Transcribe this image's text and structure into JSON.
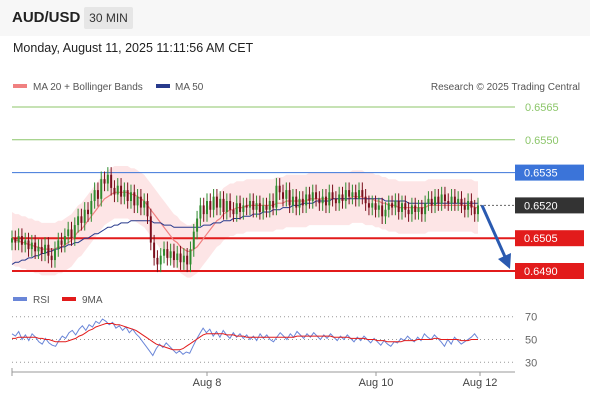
{
  "header": {
    "symbol": "AUD/USD",
    "interval": "30 MIN",
    "datetime": "Monday, August 11, 2025 11:11:56 AM CET"
  },
  "legend": {
    "ma20": "MA 20 + Bollinger Bands",
    "ma50": "MA 50",
    "credit": "Research © 2025 Trading Central",
    "rsi": "RSI",
    "rsi_ma": "9MA"
  },
  "colors": {
    "bull": "#2e8b2e",
    "bear": "#7a0e1c",
    "ma20": "#f08080",
    "ma50": "#283a8c",
    "bands": "#fde0e2",
    "support": "#e21b1b",
    "pivot": "#3b74d9",
    "target": "#8cc66a",
    "arrow": "#2a5ab0",
    "current": "#333333"
  },
  "chart_data": [
    {
      "type": "candlestick",
      "ylim": [
        0.6475,
        0.6575
      ],
      "x_labels": [
        "Aug 8",
        "Aug 10",
        "Aug 12"
      ],
      "levels": [
        {
          "value": 0.6565,
          "label": "0.6565",
          "kind": "target"
        },
        {
          "value": 0.655,
          "label": "0.6550",
          "kind": "target"
        },
        {
          "value": 0.6535,
          "label": "0.6535",
          "kind": "pivot"
        },
        {
          "value": 0.652,
          "label": "0.6520",
          "kind": "current"
        },
        {
          "value": 0.6505,
          "label": "0.6505",
          "kind": "support"
        },
        {
          "value": 0.649,
          "label": "0.6490",
          "kind": "support"
        }
      ],
      "closes": [
        0.6505,
        0.6503,
        0.6506,
        0.6502,
        0.6504,
        0.65,
        0.6503,
        0.6499,
        0.6501,
        0.6498,
        0.6502,
        0.6497,
        0.6495,
        0.65,
        0.6504,
        0.6502,
        0.6506,
        0.6509,
        0.6505,
        0.6511,
        0.6515,
        0.6512,
        0.6518,
        0.6516,
        0.6522,
        0.6527,
        0.6523,
        0.6532,
        0.653,
        0.6534,
        0.6528,
        0.6525,
        0.6529,
        0.6524,
        0.6527,
        0.6522,
        0.6526,
        0.652,
        0.6524,
        0.6519,
        0.6522,
        0.6515,
        0.6503,
        0.6496,
        0.6493,
        0.6497,
        0.65,
        0.6496,
        0.6499,
        0.6495,
        0.6498,
        0.6494,
        0.6497,
        0.6493,
        0.65,
        0.6508,
        0.6514,
        0.652,
        0.6516,
        0.6522,
        0.6518,
        0.6524,
        0.6519,
        0.6523,
        0.6517,
        0.6522,
        0.6518,
        0.6516,
        0.6521,
        0.6517,
        0.652,
        0.6519,
        0.6522,
        0.6518,
        0.6521,
        0.6517,
        0.652,
        0.6518,
        0.6522,
        0.6519,
        0.6529,
        0.6526,
        0.6523,
        0.6527,
        0.652,
        0.6524,
        0.6519,
        0.6523,
        0.652,
        0.6525,
        0.6522,
        0.6526,
        0.6523,
        0.6521,
        0.6524,
        0.652,
        0.6526,
        0.6523,
        0.6521,
        0.6525,
        0.6522,
        0.6527,
        0.6524,
        0.6526,
        0.6523,
        0.6527,
        0.6524,
        0.6521,
        0.6519,
        0.6521,
        0.6518,
        0.652,
        0.6515,
        0.6518,
        0.6521,
        0.6519,
        0.6522,
        0.6517,
        0.6521,
        0.6518,
        0.6516,
        0.652,
        0.6517,
        0.6519,
        0.6516,
        0.6521,
        0.6523,
        0.652,
        0.6524,
        0.6521,
        0.6525,
        0.6522,
        0.6521,
        0.6524,
        0.6521,
        0.6523,
        0.652,
        0.6518,
        0.6522,
        0.6519,
        0.6516,
        0.652
      ],
      "ma20": [
        0.6505,
        0.6504,
        0.6504,
        0.6503,
        0.6503,
        0.6502,
        0.6502,
        0.6501,
        0.6501,
        0.65,
        0.65,
        0.65,
        0.65,
        0.65,
        0.6501,
        0.6501,
        0.6502,
        0.6503,
        0.6504,
        0.6506,
        0.6508,
        0.6509,
        0.6511,
        0.6513,
        0.6515,
        0.6517,
        0.6519,
        0.6521,
        0.6523,
        0.6524,
        0.6525,
        0.6526,
        0.6526,
        0.6526,
        0.6526,
        0.6526,
        0.6525,
        0.6525,
        0.6524,
        0.6523,
        0.6522,
        0.652,
        0.6518,
        0.6516,
        0.6514,
        0.6512,
        0.651,
        0.6508,
        0.6506,
        0.6504,
        0.6503,
        0.6501,
        0.65,
        0.6499,
        0.6499,
        0.65,
        0.6501,
        0.6503,
        0.6505,
        0.6507,
        0.6509,
        0.6511,
        0.6513,
        0.6514,
        0.6516,
        0.6517,
        0.6518,
        0.6518,
        0.6519,
        0.6519,
        0.6519,
        0.652,
        0.652,
        0.652,
        0.652,
        0.652,
        0.652,
        0.652,
        0.652,
        0.652,
        0.6521,
        0.6521,
        0.6521,
        0.6522,
        0.6522,
        0.6522,
        0.6522,
        0.6522,
        0.6522,
        0.6522,
        0.6523,
        0.6523,
        0.6523,
        0.6523,
        0.6523,
        0.6523,
        0.6523,
        0.6523,
        0.6523,
        0.6523,
        0.6523,
        0.6523,
        0.6523,
        0.6524,
        0.6524,
        0.6524,
        0.6524,
        0.6523,
        0.6523,
        0.6523,
        0.6522,
        0.6522,
        0.6521,
        0.6521,
        0.652,
        0.652,
        0.652,
        0.6519,
        0.6519,
        0.6519,
        0.6519,
        0.6519,
        0.6519,
        0.6519,
        0.6519,
        0.6519,
        0.652,
        0.652,
        0.652,
        0.652,
        0.652,
        0.652,
        0.652,
        0.652,
        0.652,
        0.652,
        0.652,
        0.652,
        0.652,
        0.652,
        0.6519,
        0.6519
      ],
      "ma50": [
        0.6493,
        0.6494,
        0.6494,
        0.6495,
        0.6495,
        0.6496,
        0.6496,
        0.6497,
        0.6497,
        0.6498,
        0.6498,
        0.6499,
        0.6499,
        0.65,
        0.65,
        0.6501,
        0.6501,
        0.6502,
        0.6502,
        0.6503,
        0.6503,
        0.6504,
        0.6505,
        0.6505,
        0.6506,
        0.6507,
        0.6507,
        0.6508,
        0.6509,
        0.651,
        0.651,
        0.6511,
        0.6511,
        0.6512,
        0.6512,
        0.6512,
        0.6513,
        0.6513,
        0.6513,
        0.6513,
        0.6513,
        0.6513,
        0.6513,
        0.6512,
        0.6512,
        0.6512,
        0.6511,
        0.6511,
        0.6511,
        0.651,
        0.651,
        0.651,
        0.651,
        0.651,
        0.651,
        0.651,
        0.651,
        0.651,
        0.6511,
        0.6511,
        0.6511,
        0.6512,
        0.6512,
        0.6512,
        0.6513,
        0.6513,
        0.6513,
        0.6514,
        0.6514,
        0.6514,
        0.6515,
        0.6515,
        0.6515,
        0.6516,
        0.6516,
        0.6516,
        0.6517,
        0.6517,
        0.6517,
        0.6518,
        0.6518,
        0.6518,
        0.6519,
        0.6519,
        0.6519,
        0.652,
        0.652,
        0.652,
        0.6521,
        0.6521,
        0.6521,
        0.6521,
        0.6522,
        0.6522,
        0.6522,
        0.6522,
        0.6522,
        0.6523,
        0.6523,
        0.6523,
        0.6523,
        0.6523,
        0.6523,
        0.6523,
        0.6523,
        0.6523,
        0.6523,
        0.6523,
        0.6523,
        0.6523,
        0.6523,
        0.6523,
        0.6523,
        0.6522,
        0.6522,
        0.6522,
        0.6522,
        0.6522,
        0.6522,
        0.6522,
        0.6521,
        0.6521,
        0.6521,
        0.6521,
        0.6521,
        0.6521,
        0.6521,
        0.6521,
        0.6521,
        0.6521,
        0.6521,
        0.6521,
        0.6521,
        0.6521,
        0.6521,
        0.6521,
        0.6521,
        0.6521,
        0.6521,
        0.6521,
        0.6521,
        0.6521
      ],
      "band_width": 0.0012,
      "projection": {
        "from": 0.652,
        "to": 0.649
      }
    },
    {
      "type": "line",
      "name": "RSI",
      "ylim": [
        25,
        75
      ],
      "ticks": [
        30,
        50,
        70
      ],
      "rsi": [
        55,
        53,
        57,
        50,
        54,
        49,
        55,
        52,
        48,
        46,
        51,
        47,
        45,
        44,
        49,
        53,
        51,
        56,
        58,
        54,
        59,
        62,
        58,
        63,
        61,
        66,
        64,
        68,
        66,
        63,
        65,
        60,
        62,
        58,
        61,
        56,
        59,
        55,
        52,
        48,
        44,
        40,
        36,
        42,
        46,
        43,
        47,
        44,
        41,
        38,
        40,
        37,
        39,
        38,
        44,
        50,
        55,
        60,
        56,
        59,
        53,
        57,
        52,
        58,
        54,
        51,
        56,
        52,
        55,
        51,
        54,
        50,
        53,
        49,
        55,
        51,
        54,
        50,
        48,
        52,
        56,
        53,
        50,
        55,
        52,
        57,
        54,
        51,
        55,
        52,
        56,
        53,
        50,
        54,
        51,
        55,
        52,
        49,
        53,
        50,
        54,
        51,
        48,
        52,
        49,
        53,
        50,
        47,
        51,
        48,
        45,
        49,
        46,
        44,
        48,
        47,
        51,
        49,
        53,
        50,
        48,
        52,
        49,
        55,
        52,
        50,
        54,
        51,
        48,
        44,
        50,
        46,
        52,
        49,
        46,
        48,
        50,
        52,
        55,
        51
      ],
      "ma9": [
        51,
        51,
        52,
        52,
        52,
        52,
        52,
        52,
        51,
        51,
        50,
        50,
        49,
        48,
        48,
        48,
        48,
        49,
        50,
        51,
        53,
        54,
        56,
        58,
        59,
        61,
        62,
        63,
        64,
        64,
        64,
        63,
        63,
        62,
        61,
        60,
        59,
        58,
        56,
        54,
        52,
        50,
        48,
        46,
        45,
        44,
        43,
        42,
        41,
        41,
        41,
        42,
        44,
        46,
        48,
        50,
        52,
        54,
        55,
        55,
        55,
        55,
        55,
        55,
        54,
        54,
        54,
        53,
        53,
        53,
        52,
        52,
        52,
        52,
        52,
        52,
        52,
        52,
        52,
        52,
        52,
        52,
        52,
        52,
        52,
        53,
        53,
        53,
        53,
        53,
        53,
        53,
        53,
        53,
        53,
        53,
        52,
        52,
        52,
        52,
        52,
        51,
        51,
        51,
        51,
        51,
        50,
        50,
        50,
        49,
        49,
        49,
        48,
        48,
        48,
        48,
        48,
        49,
        49,
        49,
        49,
        50,
        50,
        50,
        50,
        50,
        51,
        51,
        50,
        50,
        50,
        50,
        50,
        50,
        49,
        49,
        49,
        50,
        50,
        50
      ],
      "x_labels": [
        "Aug 8",
        "Aug 10",
        "Aug 12"
      ]
    }
  ]
}
